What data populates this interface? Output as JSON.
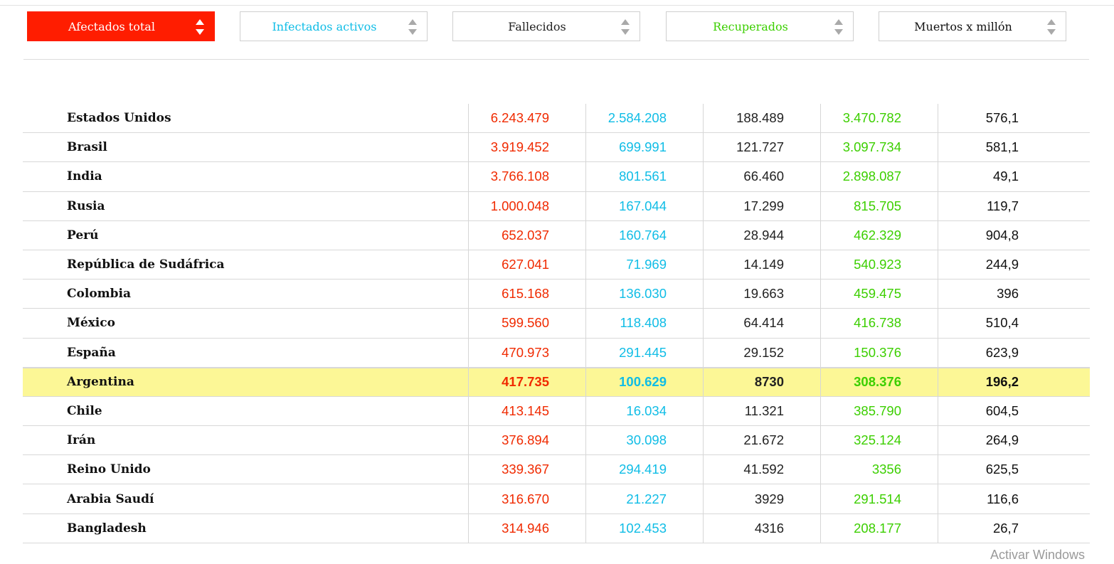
{
  "colors": {
    "active_sort": "#ff1d00",
    "afectados": "#f02a00",
    "infectados": "#10bde6",
    "fallecidos": "#222222",
    "recuperados": "#3ccf00",
    "muertos": "#111111",
    "highlight_row": "#fcf796"
  },
  "sort_buttons": [
    {
      "label": "Afectados total",
      "icon": "sort-arrows-icon",
      "active": true,
      "color": "#ffffff"
    },
    {
      "label": "Infectados activos",
      "icon": "sort-arrows-icon",
      "active": false,
      "color": "#10bde6"
    },
    {
      "label": "Fallecidos",
      "icon": "sort-arrows-icon",
      "active": false,
      "color": "#222222"
    },
    {
      "label": "Recuperados",
      "icon": "sort-arrows-icon",
      "active": false,
      "color": "#3ccf00"
    },
    {
      "label": "Muertos x millón",
      "icon": "sort-arrows-icon",
      "active": false,
      "color": "#111111"
    }
  ],
  "table": {
    "highlighted_country": "Argentina",
    "rows": [
      {
        "country": "Estados Unidos",
        "afectados": "6.243.479",
        "infectados": "2.584.208",
        "fallecidos": "188.489",
        "recuperados": "3.470.782",
        "muertos": "576,1"
      },
      {
        "country": "Brasil",
        "afectados": "3.919.452",
        "infectados": "699.991",
        "fallecidos": "121.727",
        "recuperados": "3.097.734",
        "muertos": "581,1"
      },
      {
        "country": "India",
        "afectados": "3.766.108",
        "infectados": "801.561",
        "fallecidos": "66.460",
        "recuperados": "2.898.087",
        "muertos": "49,1"
      },
      {
        "country": "Rusia",
        "afectados": "1.000.048",
        "infectados": "167.044",
        "fallecidos": "17.299",
        "recuperados": "815.705",
        "muertos": "119,7"
      },
      {
        "country": "Perú",
        "afectados": "652.037",
        "infectados": "160.764",
        "fallecidos": "28.944",
        "recuperados": "462.329",
        "muertos": "904,8"
      },
      {
        "country": "República de Sudáfrica",
        "afectados": "627.041",
        "infectados": "71.969",
        "fallecidos": "14.149",
        "recuperados": "540.923",
        "muertos": "244,9"
      },
      {
        "country": "Colombia",
        "afectados": "615.168",
        "infectados": "136.030",
        "fallecidos": "19.663",
        "recuperados": "459.475",
        "muertos": "396"
      },
      {
        "country": "México",
        "afectados": "599.560",
        "infectados": "118.408",
        "fallecidos": "64.414",
        "recuperados": "416.738",
        "muertos": "510,4"
      },
      {
        "country": "España",
        "afectados": "470.973",
        "infectados": "291.445",
        "fallecidos": "29.152",
        "recuperados": "150.376",
        "muertos": "623,9"
      },
      {
        "country": "Argentina",
        "afectados": "417.735",
        "infectados": "100.629",
        "fallecidos": "8730",
        "recuperados": "308.376",
        "muertos": "196,2"
      },
      {
        "country": "Chile",
        "afectados": "413.145",
        "infectados": "16.034",
        "fallecidos": "11.321",
        "recuperados": "385.790",
        "muertos": "604,5"
      },
      {
        "country": "Irán",
        "afectados": "376.894",
        "infectados": "30.098",
        "fallecidos": "21.672",
        "recuperados": "325.124",
        "muertos": "264,9"
      },
      {
        "country": "Reino Unido",
        "afectados": "339.367",
        "infectados": "294.419",
        "fallecidos": "41.592",
        "recuperados": "3356",
        "muertos": "625,5"
      },
      {
        "country": "Arabia Saudí",
        "afectados": "316.670",
        "infectados": "21.227",
        "fallecidos": "3929",
        "recuperados": "291.514",
        "muertos": "116,6"
      },
      {
        "country": "Bangladesh",
        "afectados": "314.946",
        "infectados": "102.453",
        "fallecidos": "4316",
        "recuperados": "208.177",
        "muertos": "26,7"
      }
    ]
  },
  "watermark": "Activar Windows"
}
